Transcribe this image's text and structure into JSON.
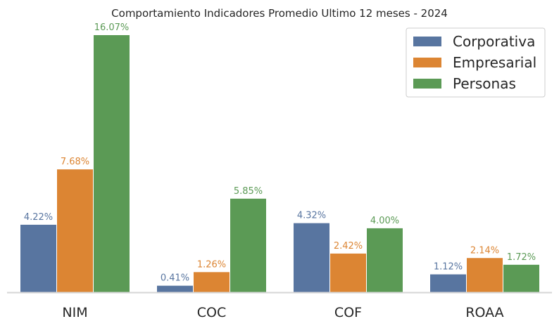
{
  "chart_data": {
    "type": "bar",
    "title": "Comportamiento Indicadores Promedio Ultimo 12 meses - 2024",
    "xlabel": "",
    "ylabel": "",
    "categories": [
      "NIM",
      "COC",
      "COF",
      "ROAA"
    ],
    "series": [
      {
        "name": "Corporativa",
        "color": "#5875a0",
        "values": [
          4.22,
          0.41,
          4.32,
          1.12
        ],
        "labels": [
          "4.22%",
          "0.41%",
          "4.32%",
          "1.12%"
        ]
      },
      {
        "name": "Empresarial",
        "color": "#dc8533",
        "values": [
          7.68,
          1.26,
          2.42,
          2.14
        ],
        "labels": [
          "7.68%",
          "1.26%",
          "2.42%",
          "2.14%"
        ]
      },
      {
        "name": "Personas",
        "color": "#5b9a55",
        "values": [
          16.07,
          5.85,
          4.0,
          1.72
        ],
        "labels": [
          "16.07%",
          "5.85%",
          "4.00%",
          "1.72%"
        ]
      }
    ],
    "ylim": [
      0,
      17
    ],
    "grid": false,
    "legend": "top-right"
  }
}
